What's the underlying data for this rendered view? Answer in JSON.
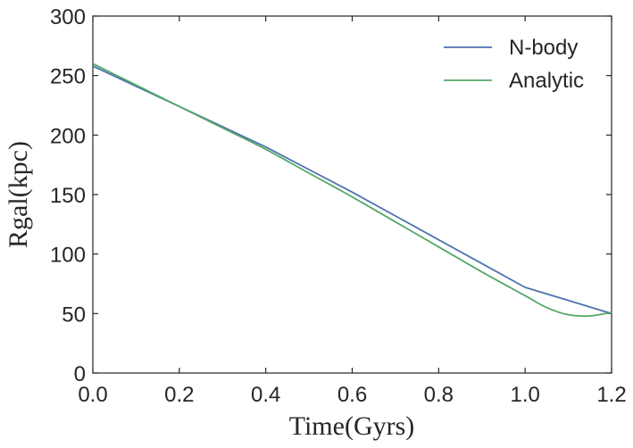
{
  "chart_data": {
    "type": "line",
    "xlabel": "Time(Gyrs)",
    "ylabel": "Rgal(kpc)",
    "xlim": [
      0.0,
      1.2
    ],
    "ylim": [
      0,
      300
    ],
    "xticks": [
      "0.0",
      "0.2",
      "0.4",
      "0.6",
      "0.8",
      "1.0",
      "1.2"
    ],
    "yticks": [
      "0",
      "50",
      "100",
      "150",
      "200",
      "250",
      "300"
    ],
    "grid": false,
    "legend_position": "top-right",
    "series": [
      {
        "name": "N-body",
        "color": "#4c72b0",
        "x": [
          0.0,
          0.1,
          0.2,
          0.3,
          0.4,
          0.5,
          0.6,
          0.7,
          0.8,
          0.9,
          1.0,
          1.1,
          1.2
        ],
        "y": [
          258,
          241,
          224,
          207,
          190,
          171,
          152,
          132,
          112,
          92,
          72,
          61,
          50
        ]
      },
      {
        "name": "Analytic",
        "color": "#55a868",
        "x": [
          0.0,
          0.1,
          0.2,
          0.3,
          0.4,
          0.5,
          0.6,
          0.7,
          0.8,
          0.9,
          1.0,
          1.05,
          1.1,
          1.15,
          1.2
        ],
        "y": [
          260,
          242,
          224,
          206,
          188,
          168,
          148,
          127,
          106,
          85,
          65,
          55,
          49,
          48,
          51
        ]
      }
    ]
  }
}
